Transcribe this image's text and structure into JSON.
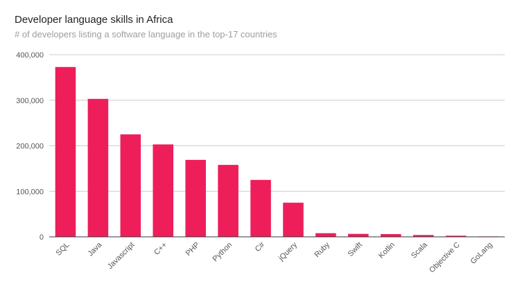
{
  "chart_data": {
    "type": "bar",
    "title": "Developer language skills in Africa",
    "subtitle": "# of developers listing a software language in the top-17 countries",
    "xlabel": "",
    "ylabel": "",
    "categories": [
      "SQL",
      "Java",
      "Javascript",
      "C++",
      "PHP",
      "Python",
      "C#",
      "jQuery",
      "Ruby",
      "Swift",
      "Kotlin",
      "Scala",
      "Objective C",
      "GoLang"
    ],
    "values": [
      373000,
      303000,
      225000,
      203000,
      169000,
      158000,
      125000,
      75000,
      8000,
      6500,
      6000,
      4000,
      2500,
      1000
    ],
    "ylim": [
      0,
      400000
    ],
    "yticks": [
      0,
      100000,
      200000,
      300000,
      400000
    ],
    "ytick_labels": [
      "0",
      "100,000",
      "200,000",
      "300,000",
      "400,000"
    ],
    "grid": true,
    "legend": "none",
    "bar_color": "#EE1E5B",
    "grid_color": "#cccccc",
    "baseline_color": "#333333"
  }
}
